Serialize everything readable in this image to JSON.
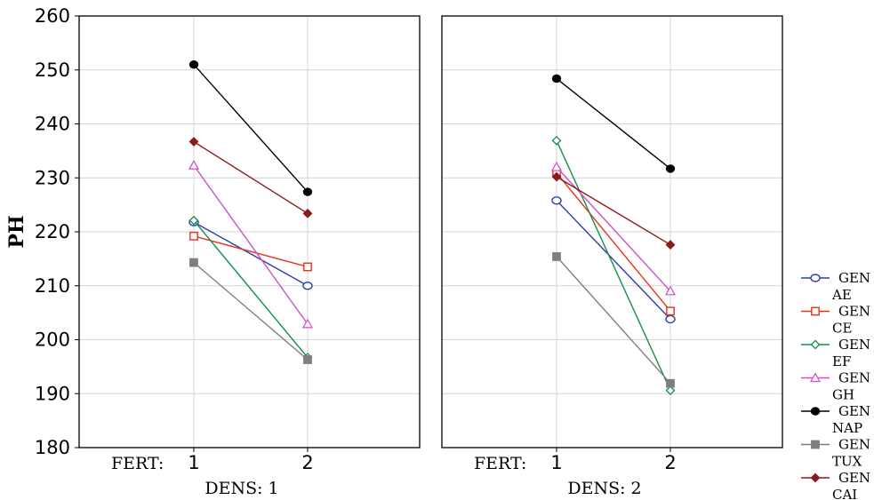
{
  "chart_data": {
    "type": "line",
    "ylabel": "PH",
    "ylim": [
      180,
      260
    ],
    "yticks": [
      180,
      190,
      200,
      210,
      220,
      230,
      240,
      250,
      260
    ],
    "x_factor_label": "FERT:",
    "categories": [
      "1",
      "2"
    ],
    "grid": true,
    "legend_position": "right",
    "panels": [
      {
        "title": "DENS: 1",
        "series": [
          {
            "name": "GEN AE",
            "values": [
              221.8,
              210.0
            ]
          },
          {
            "name": "GEN CE",
            "values": [
              219.2,
              213.5
            ]
          },
          {
            "name": "GEN EF",
            "values": [
              222.1,
              196.7
            ]
          },
          {
            "name": "GEN GH",
            "values": [
              232.3,
              202.9
            ]
          },
          {
            "name": "GEN NAP",
            "values": [
              251.0,
              227.4
            ]
          },
          {
            "name": "GEN TUX",
            "values": [
              214.3,
              196.3
            ]
          },
          {
            "name": "GEN CAI",
            "values": [
              236.7,
              223.4
            ]
          }
        ]
      },
      {
        "title": "DENS: 2",
        "series": [
          {
            "name": "GEN AE",
            "values": [
              225.8,
              203.8
            ]
          },
          {
            "name": "GEN CE",
            "values": [
              230.9,
              205.3
            ]
          },
          {
            "name": "GEN EF",
            "values": [
              236.9,
              190.6
            ]
          },
          {
            "name": "GEN GH",
            "values": [
              232.0,
              209.0
            ]
          },
          {
            "name": "GEN NAP",
            "values": [
              248.4,
              231.7
            ]
          },
          {
            "name": "GEN TUX",
            "values": [
              215.4,
              191.9
            ]
          },
          {
            "name": "GEN CAI",
            "values": [
              230.2,
              217.6
            ]
          }
        ]
      }
    ],
    "legend": [
      {
        "line1": "GEN",
        "line2": "AE",
        "color": "#2c3fa8",
        "marker": "circle"
      },
      {
        "line1": "GEN",
        "line2": "CE",
        "color": "#e8321e",
        "marker": "square"
      },
      {
        "line1": "GEN",
        "line2": "EF",
        "color": "#12904a",
        "marker": "diamond"
      },
      {
        "line1": "GEN",
        "line2": "GH",
        "color": "#cc4fc8",
        "marker": "triangle"
      },
      {
        "line1": "GEN",
        "line2": "NAP",
        "color": "#000000",
        "marker": "filled-circle"
      },
      {
        "line1": "GEN",
        "line2": "TUX",
        "color": "#7f7f7f",
        "marker": "filled-square"
      },
      {
        "line1": "GEN",
        "line2": "CAI",
        "color": "#8b1a1a",
        "marker": "filled-diamond"
      }
    ]
  }
}
